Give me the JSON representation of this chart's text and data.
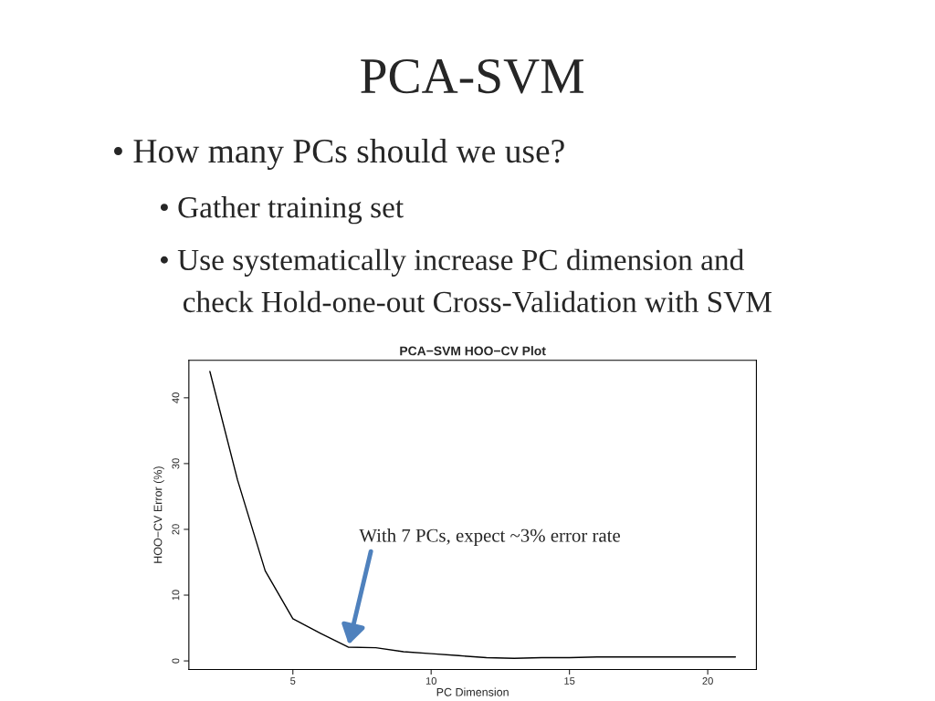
{
  "chart_data": {
    "type": "line",
    "title": "PCA-SVM",
    "subtitle": "• How many PCs should we use?",
    "annotations": [
      "• Gather training set",
      "• Use systematically increase PC dimension and",
      "check Hold-one-out Cross-Validation with SVM",
      "PCA−SVM HOO−CV Plot",
      {
        "text": "With 7 PCs, expect ~3% error rate",
        "x": 7,
        "y": 2.1
      }
    ],
    "xlabel": "PC Dimension",
    "ylabel": "HOO−CV Error (%)",
    "x": [
      2,
      3,
      4,
      5,
      6,
      7,
      8,
      9,
      10,
      11,
      12,
      13,
      14,
      15,
      16,
      17,
      18,
      19,
      20,
      21
    ],
    "series": [
      {
        "color": "#000000",
        "values": [
          44,
          27.5,
          13.7,
          6.4,
          4.2,
          2.1,
          2.0,
          1.4,
          1.1,
          0.8,
          0.5,
          0.4,
          0.5,
          0.5,
          0.6,
          0.6,
          0.6,
          0.6,
          0.6,
          0.6
        ]
      }
    ],
    "xlim": [
      1.24,
      21.76
    ],
    "ylim": [
      -1.3,
      45.7
    ],
    "xticks": [
      5,
      10,
      15,
      20
    ],
    "yticks": [
      0,
      10,
      20,
      30,
      40
    ],
    "grid": false,
    "legend": false,
    "marker": "none",
    "line_style": "solid"
  }
}
